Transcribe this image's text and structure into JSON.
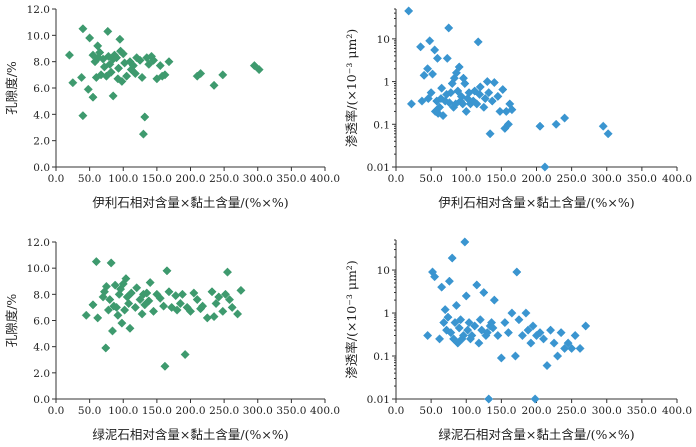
{
  "colors": {
    "green": "#3e9a6e",
    "blue": "#3a95d0",
    "axis": "#333333"
  },
  "chart_data": [
    {
      "id": "a",
      "type": "scatter",
      "title": "",
      "xlabel": "伊利石相对含量×黏土含量/(%×%)",
      "ylabel": "孔隙度/%",
      "xlim": [
        0,
        400
      ],
      "ylim": [
        0,
        12
      ],
      "yscale": "linear",
      "xticks": [
        "0.0",
        "50.0",
        "100.0",
        "150.0",
        "200.0",
        "250.0",
        "300.0",
        "350.0",
        "400.0"
      ],
      "yticks": [
        "0.0",
        "2.0",
        "4.0",
        "6.0",
        "8.0",
        "10.0",
        "12.0"
      ],
      "color_key": "green",
      "points": [
        [
          20,
          8.5
        ],
        [
          25,
          6.4
        ],
        [
          38,
          6.8
        ],
        [
          40,
          3.9
        ],
        [
          40,
          10.5
        ],
        [
          48,
          5.9
        ],
        [
          50,
          9.8
        ],
        [
          55,
          5.3
        ],
        [
          55,
          8.5
        ],
        [
          58,
          8.0
        ],
        [
          60,
          6.8
        ],
        [
          62,
          9.2
        ],
        [
          63,
          8.3
        ],
        [
          65,
          8.7
        ],
        [
          67,
          7.0
        ],
        [
          70,
          8.2
        ],
        [
          72,
          7.6
        ],
        [
          75,
          6.9
        ],
        [
          77,
          10.3
        ],
        [
          78,
          8.4
        ],
        [
          80,
          7.8
        ],
        [
          82,
          7.2
        ],
        [
          85,
          5.4
        ],
        [
          85,
          8.2
        ],
        [
          87,
          8.5
        ],
        [
          90,
          8.3
        ],
        [
          92,
          6.7
        ],
        [
          93,
          7.5
        ],
        [
          95,
          9.7
        ],
        [
          96,
          8.8
        ],
        [
          98,
          6.5
        ],
        [
          100,
          8.6
        ],
        [
          102,
          7.9
        ],
        [
          105,
          6.9
        ],
        [
          110,
          8.0
        ],
        [
          112,
          7.4
        ],
        [
          115,
          7.7
        ],
        [
          118,
          7.1
        ],
        [
          120,
          8.3
        ],
        [
          125,
          8.1
        ],
        [
          128,
          6.8
        ],
        [
          130,
          2.5
        ],
        [
          132,
          3.8
        ],
        [
          135,
          8.3
        ],
        [
          138,
          7.8
        ],
        [
          142,
          8.4
        ],
        [
          145,
          8.1
        ],
        [
          150,
          6.7
        ],
        [
          155,
          7.7
        ],
        [
          158,
          6.9
        ],
        [
          162,
          7.0
        ],
        [
          168,
          8.0
        ],
        [
          210,
          6.9
        ],
        [
          215,
          7.1
        ],
        [
          235,
          6.2
        ],
        [
          248,
          7.0
        ],
        [
          295,
          7.7
        ],
        [
          302,
          7.4
        ]
      ]
    },
    {
      "id": "b",
      "type": "scatter",
      "title": "",
      "xlabel": "伊利石相对含量×黏土含量/(%×%)",
      "ylabel": "渗透率/(×10⁻³ μm²)",
      "xlim": [
        0,
        400
      ],
      "ylim": [
        0.01,
        50
      ],
      "yscale": "log",
      "xticks": [
        "0.0",
        "50.0",
        "100.0",
        "150.0",
        "200.0",
        "250.0",
        "300.0",
        "350.0",
        "400.0"
      ],
      "yticks": [
        "0.01",
        "0.1",
        "1",
        "10"
      ],
      "color_key": "blue",
      "points": [
        [
          18,
          45
        ],
        [
          22,
          0.3
        ],
        [
          35,
          6.5
        ],
        [
          37,
          0.35
        ],
        [
          40,
          1.4
        ],
        [
          45,
          2.0
        ],
        [
          46,
          0.4
        ],
        [
          48,
          9.0
        ],
        [
          50,
          0.55
        ],
        [
          52,
          1.5
        ],
        [
          55,
          5.5
        ],
        [
          56,
          0.2
        ],
        [
          58,
          0.35
        ],
        [
          59,
          3.5
        ],
        [
          60,
          0.18
        ],
        [
          62,
          0.25
        ],
        [
          64,
          0.4
        ],
        [
          65,
          0.7
        ],
        [
          67,
          0.16
        ],
        [
          70,
          0.35
        ],
        [
          72,
          0.5
        ],
        [
          73,
          3.5
        ],
        [
          75,
          18
        ],
        [
          76,
          0.32
        ],
        [
          78,
          0.55
        ],
        [
          80,
          0.9
        ],
        [
          82,
          0.25
        ],
        [
          83,
          1.2
        ],
        [
          85,
          0.3
        ],
        [
          86,
          1.6
        ],
        [
          88,
          0.6
        ],
        [
          90,
          2.2
        ],
        [
          92,
          0.35
        ],
        [
          93,
          0.45
        ],
        [
          95,
          0.3
        ],
        [
          96,
          1.2
        ],
        [
          98,
          0.9
        ],
        [
          100,
          0.2
        ],
        [
          102,
          0.4
        ],
        [
          104,
          0.55
        ],
        [
          106,
          0.3
        ],
        [
          110,
          0.35
        ],
        [
          112,
          0.6
        ],
        [
          115,
          0.3
        ],
        [
          117,
          8.5
        ],
        [
          119,
          0.5
        ],
        [
          120,
          0.75
        ],
        [
          125,
          0.25
        ],
        [
          127,
          0.4
        ],
        [
          130,
          1.0
        ],
        [
          132,
          0.55
        ],
        [
          134,
          0.06
        ],
        [
          137,
          0.35
        ],
        [
          140,
          0.95
        ],
        [
          145,
          0.45
        ],
        [
          148,
          0.2
        ],
        [
          152,
          0.65
        ],
        [
          155,
          0.08
        ],
        [
          157,
          0.2
        ],
        [
          160,
          0.1
        ],
        [
          162,
          0.3
        ],
        [
          165,
          0.22
        ],
        [
          205,
          0.09
        ],
        [
          212,
          0.01
        ],
        [
          228,
          0.1
        ],
        [
          240,
          0.14
        ],
        [
          295,
          0.09
        ],
        [
          302,
          0.06
        ]
      ]
    },
    {
      "id": "c",
      "type": "scatter",
      "title": "",
      "xlabel": "绿泥石相对含量×黏土含量/(%×%)",
      "ylabel": "孔隙度/%",
      "xlim": [
        0,
        400
      ],
      "ylim": [
        0,
        12
      ],
      "yscale": "linear",
      "xticks": [
        "0.0",
        "50.0",
        "100.0",
        "150.0",
        "200.0",
        "250.0",
        "300.0",
        "350.0",
        "400.0"
      ],
      "yticks": [
        "0.0",
        "2.0",
        "4.0",
        "6.0",
        "8.0",
        "10.0",
        "12.0"
      ],
      "color_key": "green",
      "points": [
        [
          45,
          6.4
        ],
        [
          55,
          7.2
        ],
        [
          60,
          10.5
        ],
        [
          62,
          6.2
        ],
        [
          70,
          7.8
        ],
        [
          72,
          8.2
        ],
        [
          74,
          3.9
        ],
        [
          75,
          8.6
        ],
        [
          78,
          6.8
        ],
        [
          80,
          7.6
        ],
        [
          82,
          10.4
        ],
        [
          84,
          5.2
        ],
        [
          86,
          7.1
        ],
        [
          88,
          8.7
        ],
        [
          90,
          7.0
        ],
        [
          92,
          6.4
        ],
        [
          94,
          8.0
        ],
        [
          96,
          8.4
        ],
        [
          98,
          5.8
        ],
        [
          100,
          8.8
        ],
        [
          102,
          6.8
        ],
        [
          104,
          9.2
        ],
        [
          106,
          7.8
        ],
        [
          108,
          7.3
        ],
        [
          110,
          5.4
        ],
        [
          112,
          8.1
        ],
        [
          118,
          7.0
        ],
        [
          120,
          8.5
        ],
        [
          125,
          7.6
        ],
        [
          128,
          6.5
        ],
        [
          130,
          8.0
        ],
        [
          132,
          7.2
        ],
        [
          135,
          8.1
        ],
        [
          138,
          7.5
        ],
        [
          140,
          8.9
        ],
        [
          145,
          6.7
        ],
        [
          150,
          8.0
        ],
        [
          155,
          7.7
        ],
        [
          160,
          7.1
        ],
        [
          162,
          2.5
        ],
        [
          165,
          9.8
        ],
        [
          168,
          8.2
        ],
        [
          172,
          7.0
        ],
        [
          178,
          7.9
        ],
        [
          180,
          6.8
        ],
        [
          185,
          7.3
        ],
        [
          188,
          8.0
        ],
        [
          192,
          3.4
        ],
        [
          195,
          7.0
        ],
        [
          200,
          6.7
        ],
        [
          205,
          8.1
        ],
        [
          210,
          7.6
        ],
        [
          215,
          6.9
        ],
        [
          218,
          7.1
        ],
        [
          225,
          6.2
        ],
        [
          232,
          8.2
        ],
        [
          235,
          6.3
        ],
        [
          238,
          7.3
        ],
        [
          242,
          7.8
        ],
        [
          248,
          6.7
        ],
        [
          252,
          8.0
        ],
        [
          255,
          9.7
        ],
        [
          258,
          7.6
        ],
        [
          262,
          7.0
        ],
        [
          270,
          6.5
        ],
        [
          275,
          8.3
        ]
      ]
    },
    {
      "id": "d",
      "type": "scatter",
      "title": "",
      "xlabel": "绿泥石相对含量×黏土含量/(%×%)",
      "ylabel": "渗透率/(×10⁻³ μm²)",
      "xlim": [
        0,
        400
      ],
      "ylim": [
        0.01,
        50
      ],
      "yscale": "log",
      "xticks": [
        "0.0",
        "50.0",
        "100.0",
        "150.0",
        "200.0",
        "250.0",
        "300.0",
        "350.0",
        "400.0"
      ],
      "yticks": [
        "0.01",
        "0.1",
        "1",
        "10"
      ],
      "color_key": "blue",
      "points": [
        [
          45,
          0.3
        ],
        [
          52,
          9.0
        ],
        [
          55,
          7.0
        ],
        [
          62,
          0.25
        ],
        [
          65,
          4.0
        ],
        [
          68,
          0.6
        ],
        [
          70,
          1.2
        ],
        [
          72,
          0.4
        ],
        [
          74,
          0.8
        ],
        [
          76,
          5.5
        ],
        [
          78,
          0.35
        ],
        [
          80,
          19
        ],
        [
          82,
          0.25
        ],
        [
          84,
          0.6
        ],
        [
          86,
          1.5
        ],
        [
          88,
          0.2
        ],
        [
          90,
          0.45
        ],
        [
          92,
          0.7
        ],
        [
          94,
          0.25
        ],
        [
          96,
          0.3
        ],
        [
          98,
          45
        ],
        [
          100,
          2.5
        ],
        [
          102,
          0.4
        ],
        [
          104,
          0.6
        ],
        [
          106,
          0.25
        ],
        [
          108,
          0.3
        ],
        [
          112,
          0.5
        ],
        [
          115,
          4.5
        ],
        [
          118,
          0.2
        ],
        [
          120,
          0.7
        ],
        [
          122,
          0.4
        ],
        [
          125,
          3.0
        ],
        [
          128,
          0.3
        ],
        [
          130,
          0.35
        ],
        [
          132,
          0.01
        ],
        [
          134,
          0.5
        ],
        [
          136,
          0.6
        ],
        [
          138,
          0.45
        ],
        [
          140,
          2.0
        ],
        [
          145,
          0.3
        ],
        [
          150,
          0.09
        ],
        [
          155,
          0.6
        ],
        [
          160,
          0.35
        ],
        [
          165,
          1.0
        ],
        [
          170,
          0.1
        ],
        [
          172,
          9.0
        ],
        [
          175,
          0.7
        ],
        [
          180,
          0.3
        ],
        [
          185,
          1.0
        ],
        [
          188,
          0.4
        ],
        [
          192,
          0.2
        ],
        [
          195,
          0.5
        ],
        [
          198,
          0.01
        ],
        [
          200,
          0.3
        ],
        [
          205,
          0.35
        ],
        [
          210,
          0.25
        ],
        [
          215,
          0.06
        ],
        [
          220,
          0.4
        ],
        [
          225,
          0.2
        ],
        [
          230,
          0.1
        ],
        [
          235,
          0.35
        ],
        [
          240,
          0.15
        ],
        [
          245,
          0.2
        ],
        [
          250,
          0.15
        ],
        [
          255,
          0.3
        ],
        [
          262,
          0.15
        ],
        [
          270,
          0.5
        ]
      ]
    }
  ]
}
